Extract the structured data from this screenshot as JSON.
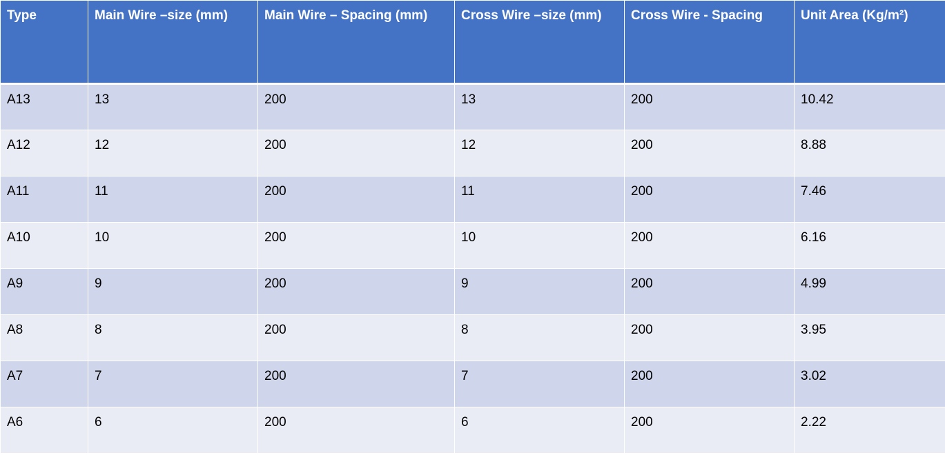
{
  "table": {
    "headers": [
      "Type",
      "Main Wire –size (mm)",
      "Main Wire – Spacing (mm)",
      "Cross Wire –size (mm)",
      "Cross Wire - Spacing",
      "Unit Area (Kg/m²)"
    ],
    "rows": [
      [
        "A13",
        "13",
        "200",
        "13",
        "200",
        "10.42"
      ],
      [
        "A12",
        "12",
        "200",
        "12",
        "200",
        "8.88"
      ],
      [
        "A11",
        "11",
        "200",
        "11",
        "200",
        "7.46"
      ],
      [
        "A10",
        "10",
        "200",
        "10",
        "200",
        "6.16"
      ],
      [
        "A9",
        "9",
        "200",
        "9",
        "200",
        "4.99"
      ],
      [
        "A8",
        "8",
        "200",
        "8",
        "200",
        "3.95"
      ],
      [
        "A7",
        "7",
        "200",
        "7",
        "200",
        "3.02"
      ],
      [
        "A6",
        "6",
        "200",
        "6",
        "200",
        "2.22"
      ]
    ]
  },
  "colors": {
    "header_bg": "#4472c4",
    "row_odd_bg": "#cfd5ea",
    "row_even_bg": "#e9ebf5"
  }
}
